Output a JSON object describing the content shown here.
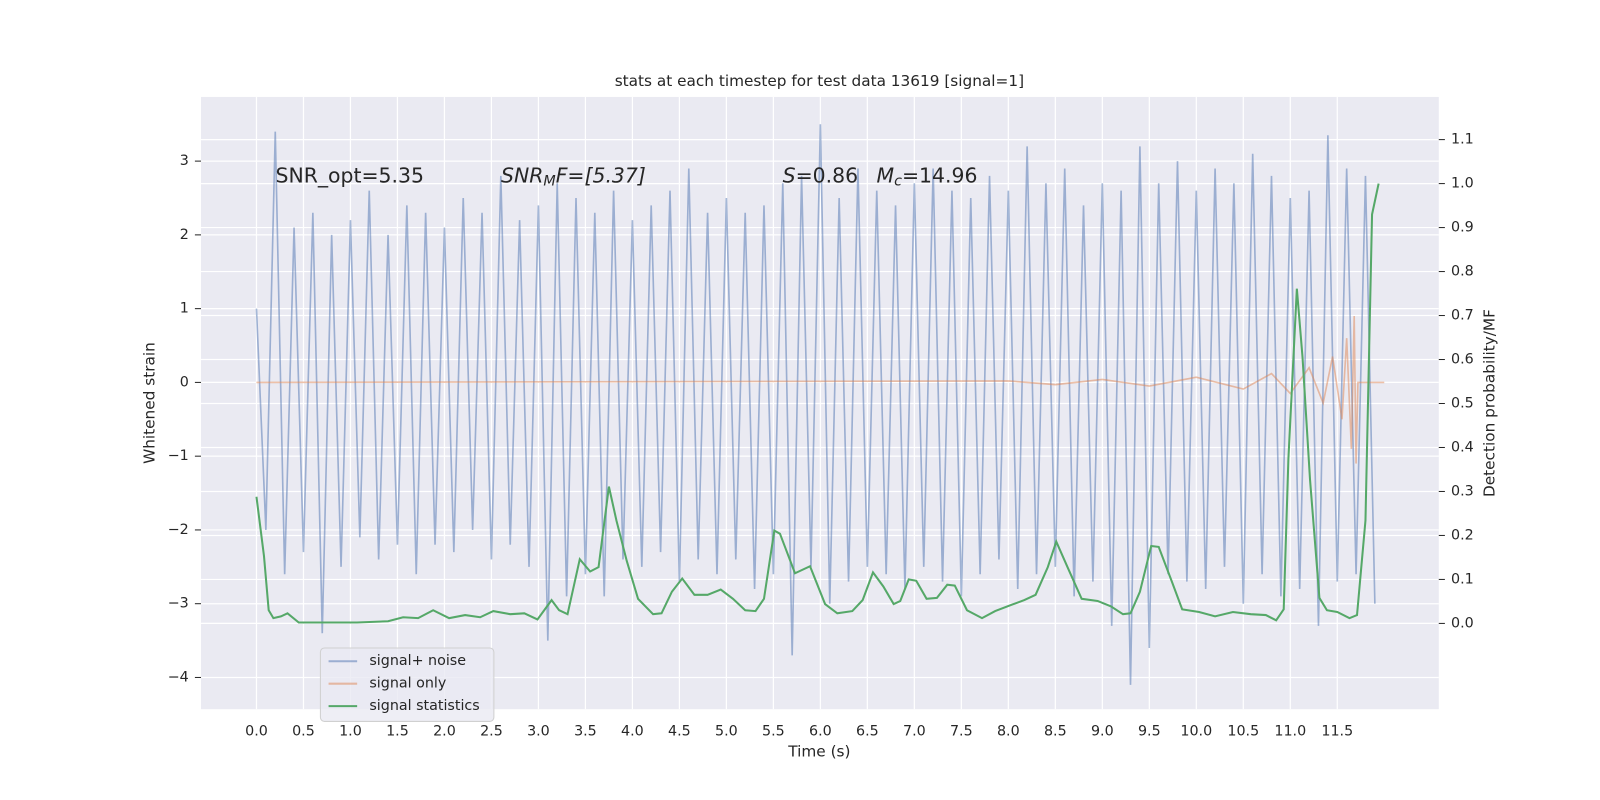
{
  "chart_data": {
    "type": "line",
    "title": "stats at each timestep for test data 13619 [signal=1]",
    "xlabel": "Time (s)",
    "ylabel": "Whitened strain",
    "y2label": "Detection probability/MF",
    "annotations": [
      [
        "SNR_opt=5.35"
      ],
      [
        "SNR",
        "M",
        "F=[5.37]"
      ],
      [
        "S",
        "=0.86"
      ],
      [
        "M",
        "c",
        "=14.96"
      ]
    ],
    "xlim": [
      -0.59,
      12.58
    ],
    "ylim": [
      -4.43,
      3.87
    ],
    "y2lim": [
      -0.195,
      1.197
    ],
    "xticks": [
      {
        "value": 0,
        "label": "0.0"
      },
      0.5,
      {
        "value": 1,
        "label": "1.0"
      },
      1.5,
      {
        "value": 2,
        "label": "2.0"
      },
      2.5,
      {
        "value": 3,
        "label": "3.0"
      },
      3.5,
      {
        "value": 4,
        "label": "4.0"
      },
      4.5,
      {
        "value": 5,
        "label": "5.0"
      },
      5.5,
      {
        "value": 6,
        "label": "6.0"
      },
      6.5,
      {
        "value": 7,
        "label": "7.0"
      },
      7.5,
      {
        "value": 8,
        "label": "8.0"
      },
      8.5,
      {
        "value": 9,
        "label": "9.0"
      },
      9.5,
      {
        "value": 10,
        "label": "10.0"
      },
      10.5,
      {
        "value": 11,
        "label": "11.0"
      },
      11.5
    ],
    "yticks": [
      {
        "value": -4,
        "label": "−4"
      },
      {
        "value": -3,
        "label": "−3"
      },
      {
        "value": -2,
        "label": "−2"
      },
      {
        "value": -1,
        "label": "−1"
      },
      0,
      1,
      2,
      3
    ],
    "y2ticks": [
      {
        "value": 0,
        "label": "0.0"
      },
      0.1,
      0.2,
      0.3,
      0.4,
      0.5,
      0.6,
      0.7,
      0.8,
      0.9,
      {
        "value": 1,
        "label": "1.0"
      },
      1.1
    ],
    "grid": true,
    "legend": "lower left",
    "series": [
      {
        "name": "signal+ noise",
        "color": "#4c72b0",
        "x": [
          0,
          0.1,
          0.2,
          0.3,
          0.4,
          0.5,
          0.6,
          0.7,
          0.8,
          0.9,
          1,
          1.1,
          1.2,
          1.3,
          1.4,
          1.5,
          1.6,
          1.7,
          1.8,
          1.9,
          2,
          2.1,
          2.2,
          2.3,
          2.4,
          2.5,
          2.6,
          2.7,
          2.8,
          2.9,
          3,
          3.1,
          3.2,
          3.3,
          3.4,
          3.5,
          3.6,
          3.7,
          3.8,
          3.9,
          4,
          4.1,
          4.2,
          4.3,
          4.4,
          4.5,
          4.6,
          4.7,
          4.8,
          4.9,
          5,
          5.1,
          5.2,
          5.3,
          5.4,
          5.5,
          5.6,
          5.7,
          5.8,
          5.9,
          6,
          6.1,
          6.2,
          6.3,
          6.4,
          6.5,
          6.6,
          6.7,
          6.8,
          6.9,
          7,
          7.1,
          7.2,
          7.3,
          7.4,
          7.5,
          7.6,
          7.7,
          7.8,
          7.9,
          8,
          8.1,
          8.2,
          8.3,
          8.4,
          8.5,
          8.6,
          8.7,
          8.8,
          8.9,
          9,
          9.1,
          9.2,
          9.3,
          9.4,
          9.5,
          9.6,
          9.7,
          9.8,
          9.9,
          10,
          10.1,
          10.2,
          10.3,
          10.4,
          10.5,
          10.6,
          10.7,
          10.8,
          10.9,
          11,
          11.1,
          11.2,
          11.3,
          11.4,
          11.5,
          11.6,
          11.7,
          11.8,
          11.9
        ],
        "values": [
          1.0,
          -2.0,
          3.4,
          -2.6,
          2.1,
          -2.3,
          2.3,
          -3.4,
          2.0,
          -2.5,
          2.2,
          -2.1,
          2.6,
          -2.4,
          2.0,
          -2.2,
          2.4,
          -2.6,
          2.3,
          -2.2,
          2.1,
          -2.3,
          2.5,
          -2.0,
          2.3,
          -2.4,
          2.8,
          -2.2,
          2.2,
          -2.5,
          2.4,
          -3.5,
          2.7,
          -2.9,
          2.5,
          -2.6,
          2.3,
          -2.9,
          2.6,
          -2.4,
          2.2,
          -2.5,
          2.4,
          -2.3,
          2.6,
          -2.7,
          2.9,
          -2.4,
          2.3,
          -2.6,
          2.5,
          -2.4,
          2.3,
          -2.8,
          2.4,
          -2.6,
          2.7,
          -3.7,
          2.8,
          -2.5,
          3.5,
          -3.0,
          2.5,
          -2.7,
          2.9,
          -2.5,
          2.6,
          -2.6,
          2.4,
          -2.8,
          2.7,
          -2.5,
          2.9,
          -2.7,
          2.6,
          -2.9,
          2.5,
          -2.6,
          2.8,
          -2.4,
          2.6,
          -2.8,
          3.2,
          -2.6,
          2.7,
          -2.5,
          2.9,
          -2.9,
          2.4,
          -2.7,
          2.7,
          -3.3,
          2.6,
          -4.1,
          3.2,
          -3.6,
          2.7,
          -2.6,
          3.0,
          -2.7,
          2.6,
          -2.8,
          2.9,
          -2.5,
          2.7,
          -3.0,
          3.1,
          -2.6,
          2.8,
          -2.9,
          2.5,
          -2.8,
          2.6,
          -3.3,
          3.35,
          -2.7,
          2.9,
          -2.6,
          2.8,
          -3.0
        ]
      },
      {
        "name": "signal only",
        "color": "#dd8452",
        "x": [
          0,
          8.0,
          8.5,
          9.0,
          9.5,
          10.0,
          10.5,
          10.8,
          11.0,
          11.2,
          11.35,
          11.45,
          11.55,
          11.6,
          11.65,
          11.68,
          11.7,
          11.72,
          12.0
        ],
        "values": [
          0,
          0.02,
          -0.03,
          0.04,
          -0.05,
          0.07,
          -0.09,
          0.12,
          -0.15,
          0.2,
          -0.28,
          0.35,
          -0.5,
          0.6,
          -0.9,
          0.9,
          -1.1,
          0,
          0
        ]
      },
      {
        "name": "signal statistics",
        "color": "#55a868",
        "axis": "y2",
        "x": [
          0,
          0.08,
          0.13,
          0.18,
          0.26,
          0.33,
          0.45,
          0.75,
          1.07,
          1.4,
          1.56,
          1.72,
          1.88,
          2.05,
          2.22,
          2.38,
          2.52,
          2.7,
          2.85,
          2.99,
          3.14,
          3.22,
          3.31,
          3.44,
          3.55,
          3.64,
          3.75,
          3.83,
          3.94,
          4.06,
          4.22,
          4.31,
          4.42,
          4.53,
          4.66,
          4.8,
          4.94,
          5.07,
          5.2,
          5.31,
          5.4,
          5.51,
          5.57,
          5.73,
          5.89,
          6.05,
          6.18,
          6.34,
          6.45,
          6.56,
          6.67,
          6.78,
          6.85,
          6.94,
          7.02,
          7.13,
          7.24,
          7.35,
          7.43,
          7.56,
          7.72,
          7.86,
          8.03,
          8.17,
          8.29,
          8.42,
          8.51,
          8.64,
          8.78,
          8.95,
          9.09,
          9.22,
          9.3,
          9.4,
          9.52,
          9.6,
          9.74,
          9.85,
          10.03,
          10.2,
          10.39,
          10.58,
          10.74,
          10.85,
          10.93,
          10.98,
          11.07,
          11.13,
          11.21,
          11.31,
          11.39,
          11.5,
          11.63,
          11.71,
          11.8,
          11.87,
          11.94
        ],
        "values": [
          0.288,
          0.153,
          0.03,
          0.012,
          0.016,
          0.023,
          0.002,
          0.002,
          0.002,
          0.005,
          0.014,
          0.012,
          0.03,
          0.012,
          0.019,
          0.014,
          0.028,
          0.021,
          0.023,
          0.009,
          0.053,
          0.03,
          0.021,
          0.146,
          0.118,
          0.128,
          0.311,
          0.234,
          0.142,
          0.056,
          0.021,
          0.023,
          0.072,
          0.102,
          0.065,
          0.065,
          0.077,
          0.056,
          0.03,
          0.028,
          0.056,
          0.211,
          0.204,
          0.114,
          0.13,
          0.044,
          0.023,
          0.028,
          0.053,
          0.116,
          0.084,
          0.044,
          0.051,
          0.1,
          0.097,
          0.056,
          0.058,
          0.088,
          0.086,
          0.03,
          0.012,
          0.028,
          0.042,
          0.053,
          0.065,
          0.128,
          0.186,
          0.123,
          0.056,
          0.051,
          0.039,
          0.021,
          0.023,
          0.072,
          0.176,
          0.174,
          0.095,
          0.032,
          0.026,
          0.016,
          0.026,
          0.021,
          0.019,
          0.007,
          0.032,
          0.374,
          0.761,
          0.606,
          0.327,
          0.058,
          0.03,
          0.026,
          0.012,
          0.019,
          0.234,
          0.93,
          1.0
        ]
      }
    ]
  }
}
